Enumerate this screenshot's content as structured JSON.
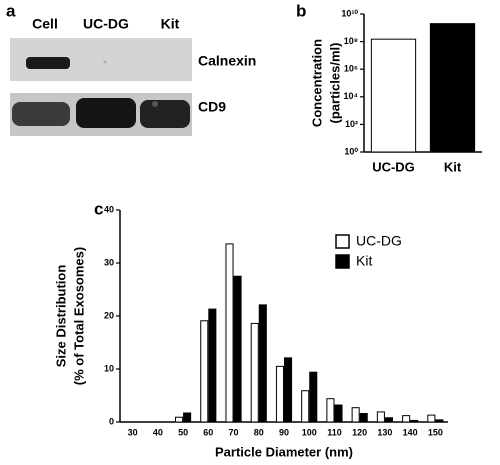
{
  "panel_labels": [
    "a",
    "b",
    "c"
  ],
  "blot": {
    "lanes": [
      "Cell",
      "UC-DG",
      "Kit"
    ],
    "markers": [
      "Calnexin",
      "CD9"
    ]
  },
  "chart_data": [
    {
      "type": "bar",
      "ylabel": [
        "Concentration",
        "(particles/ml)"
      ],
      "categories": [
        "UC-DG",
        "Kit"
      ],
      "values": [
        150000000,
        2000000000
      ],
      "colors": [
        "#ffffff",
        "#000000"
      ],
      "log_scale": true,
      "ylim": [
        1,
        10000000000
      ],
      "yticks": [
        {
          "value": 1,
          "label": "10⁰"
        },
        {
          "value": 100,
          "label": "10²"
        },
        {
          "value": 10000,
          "label": "10⁴"
        },
        {
          "value": 1000000,
          "label": "10⁶"
        },
        {
          "value": 100000000,
          "label": "10⁸"
        },
        {
          "value": 10000000000,
          "label": "10¹⁰"
        }
      ]
    },
    {
      "type": "grouped_bar",
      "xlabel": "Particle Diameter (nm)",
      "ylabel": [
        "Size Distribution",
        "(% of Total Exosomes)"
      ],
      "categories": [
        "30",
        "40",
        "50",
        "60",
        "70",
        "80",
        "90",
        "100",
        "110",
        "120",
        "130",
        "140",
        "150"
      ],
      "series": [
        {
          "name": "UC-DG",
          "color": "#ffffff",
          "values": [
            0,
            0,
            0.9,
            19.1,
            33.6,
            18.6,
            10.5,
            5.9,
            4.4,
            2.7,
            1.9,
            1.2,
            1.3
          ]
        },
        {
          "name": "Kit",
          "color": "#000000",
          "values": [
            0,
            0,
            1.7,
            21.3,
            27.5,
            22.1,
            12.1,
            9.4,
            3.2,
            1.6,
            0.8,
            0.3,
            0.4
          ]
        }
      ],
      "ylim": [
        0,
        40
      ],
      "yticks": [
        0,
        10,
        20,
        30,
        40
      ],
      "legend": "upper-right"
    }
  ]
}
